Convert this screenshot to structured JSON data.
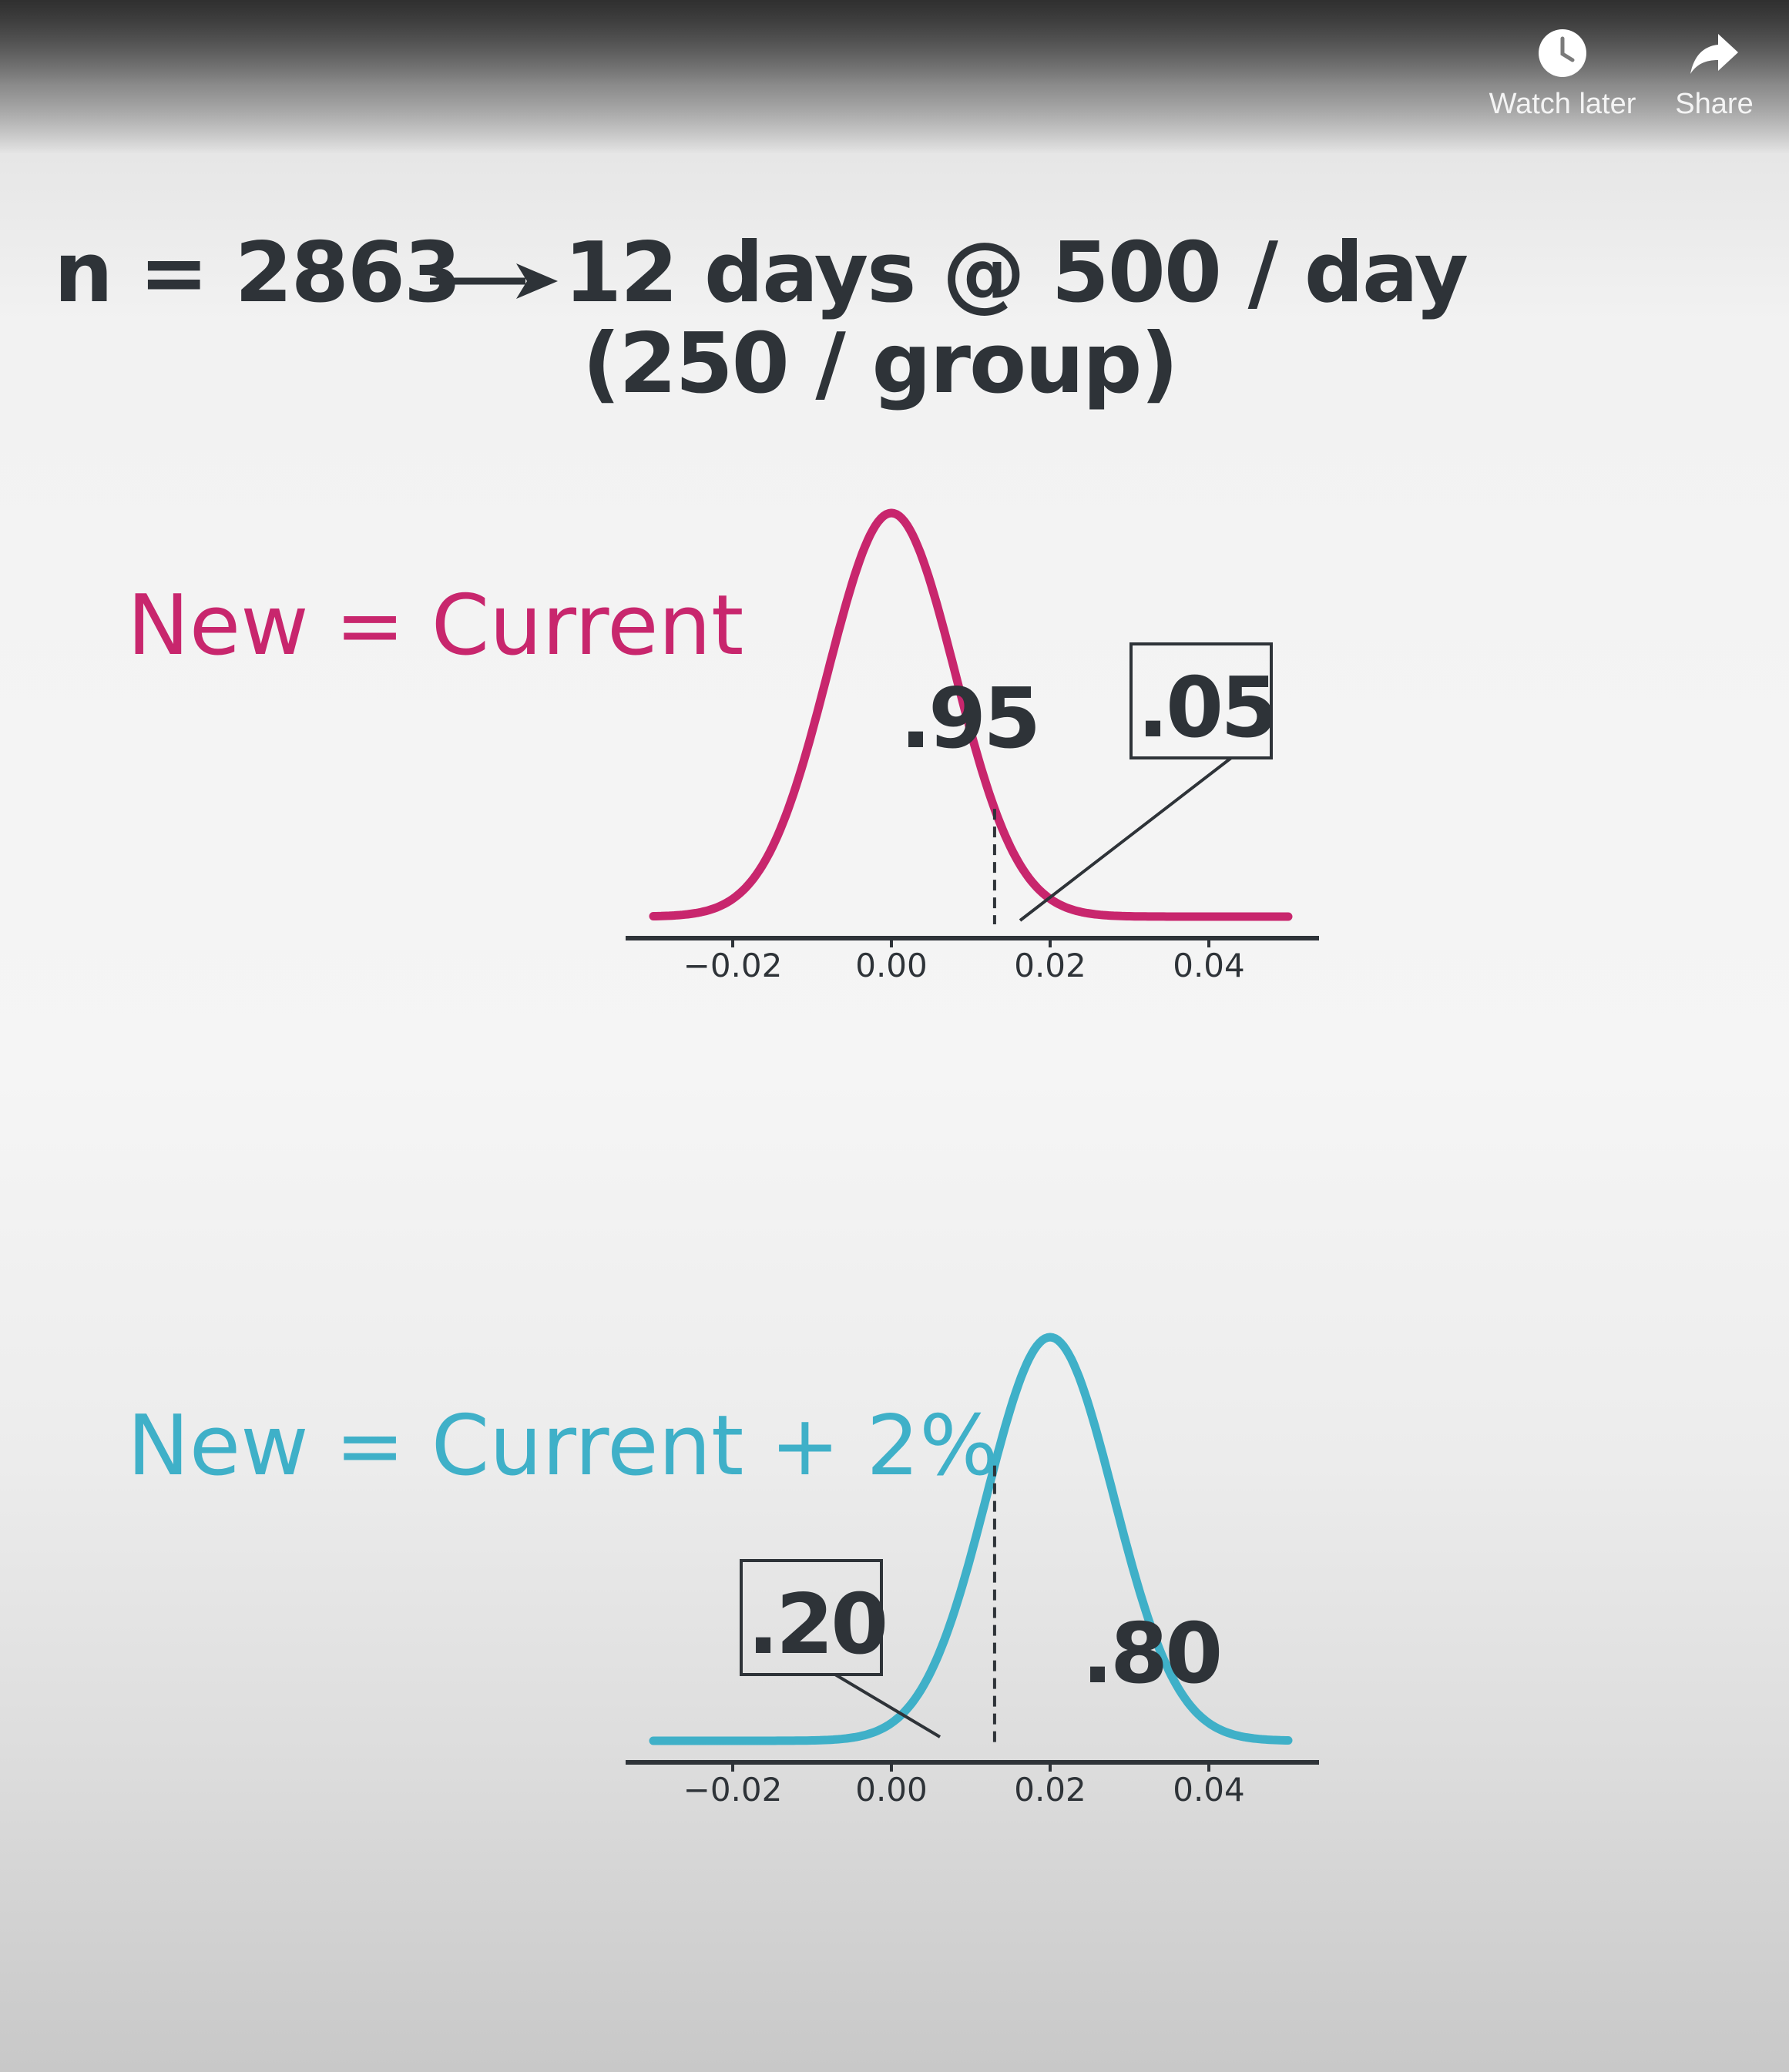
{
  "player": {
    "watch_later_label": "Watch later",
    "share_label": "Share"
  },
  "slide": {
    "line1_left": "n = 2863",
    "line1_right": "12 days @ 500 / day",
    "line2": "(250 / group)",
    "null_label": "New = Current",
    "alt_label": "New = Current + 2%"
  },
  "colors": {
    "pink": "#c8266d",
    "blue": "#3fb0c8",
    "text": "#2e3338"
  },
  "chart_data": [
    {
      "type": "area",
      "description_label": "New = Current",
      "curve": "normal",
      "mean": 0.0,
      "sd": 0.008,
      "critical_value": 0.013,
      "xlim": [
        -0.03,
        0.05
      ],
      "xticks": [
        "-0.02",
        "0.00",
        "0.02",
        "0.04"
      ],
      "xtick_values": [
        -0.02,
        0.0,
        0.02,
        0.04
      ],
      "annotations": [
        ".95",
        ".05"
      ],
      "color": "#c8266d"
    },
    {
      "type": "area",
      "description_label": "New = Current + 2%",
      "curve": "normal",
      "mean": 0.02,
      "sd": 0.008,
      "critical_value": 0.013,
      "xlim": [
        -0.03,
        0.05
      ],
      "xticks": [
        "-0.02",
        "0.00",
        "0.02",
        "0.04"
      ],
      "xtick_values": [
        -0.02,
        0.0,
        0.02,
        0.04
      ],
      "annotations": [
        ".20",
        ".80"
      ],
      "color": "#3fb0c8"
    }
  ]
}
